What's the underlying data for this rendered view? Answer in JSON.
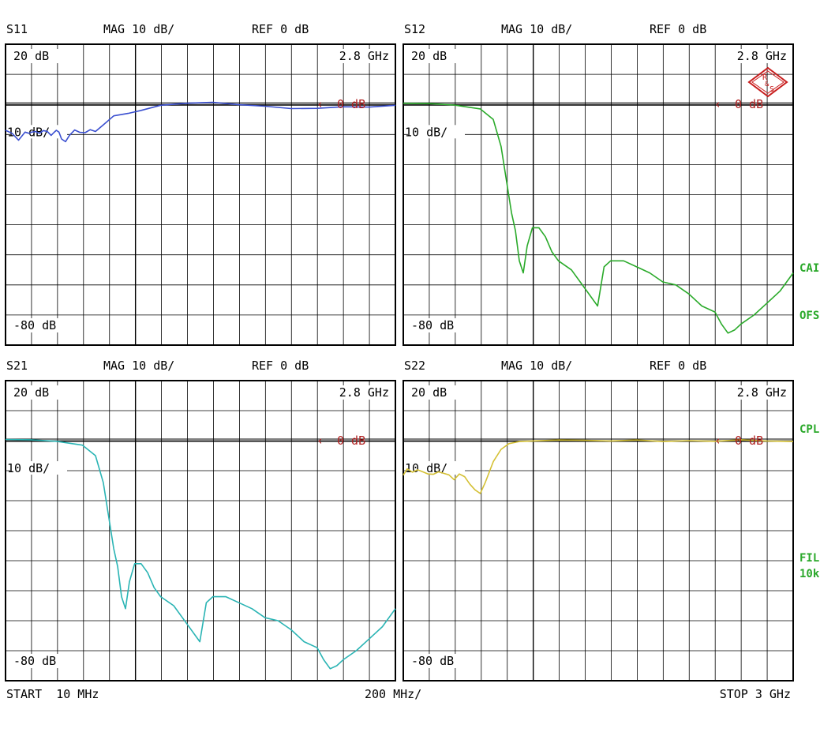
{
  "colors": {
    "frame": "#000000",
    "grid": "#000000",
    "ref_marker": "#b02020",
    "side_labels": "#2aa82a",
    "logo": "#c81e1e"
  },
  "logo": {
    "name": "rohde-schwarz-logo",
    "text": "R&S"
  },
  "sweep": {
    "start_label": "START  10 MHz",
    "span_label": "200 MHz/",
    "stop_label": "STOP 3 GHz"
  },
  "side_labels": [
    "CAI",
    "OFS",
    "CPL",
    "FIL",
    "10k"
  ],
  "chart_data": [
    {
      "type": "line",
      "title": "S11",
      "header_mag": "MAG 10 dB/",
      "header_ref": "REF 0 dB",
      "top_label": "20 dB",
      "corner_label": "2.8 GHz",
      "ref_label": "0 dB",
      "scale_label": "10 dB/",
      "bottom_label": "-80 dB",
      "series": [
        {
          "color": "#3a4fd0",
          "x": [
            10,
            60,
            110,
            160,
            190,
            210,
            240,
            270,
            300,
            330,
            360,
            380,
            400,
            420,
            440,
            470,
            500,
            540,
            580,
            620,
            660,
            700,
            760,
            840,
            950,
            1050,
            1200,
            1400,
            1600,
            1800,
            2000,
            2200,
            2400,
            2600,
            2800,
            3000
          ],
          "values": [
            -8.6,
            -9.6,
            -11.9,
            -9.2,
            -9.6,
            -9.2,
            -9.0,
            -9.6,
            -8.7,
            -9.0,
            -10.3,
            -9.4,
            -8.6,
            -9.2,
            -11.5,
            -12.4,
            -10.3,
            -8.5,
            -9.3,
            -9.4,
            -8.4,
            -9.0,
            -6.8,
            -3.8,
            -3.0,
            -2.0,
            -0.3,
            0.4,
            0.7,
            -0.1,
            -0.6,
            -1.4,
            -1.3,
            -0.8,
            -0.9,
            -0.3
          ]
        }
      ]
    },
    {
      "type": "line",
      "title": "S12",
      "header_mag": "MAG 10 dB/",
      "header_ref": "REF 0 dB",
      "top_label": "20 dB",
      "corner_label": "2.8 GHz",
      "ref_label": "0 dB",
      "scale_label": "10 dB/",
      "bottom_label": "-80 dB",
      "series": [
        {
          "color": "#2aaa2a",
          "x": [
            10,
            200,
            400,
            600,
            700,
            760,
            800,
            840,
            870,
            900,
            930,
            960,
            1000,
            1050,
            1100,
            1150,
            1200,
            1300,
            1400,
            1500,
            1550,
            1600,
            1700,
            1800,
            1900,
            2000,
            2100,
            2200,
            2300,
            2400,
            2450,
            2500,
            2550,
            2600,
            2700,
            2800,
            2900,
            3000
          ],
          "values": [
            0.4,
            0.3,
            -0.2,
            -1.5,
            -5.0,
            -14.0,
            -25.0,
            -36.0,
            -42.0,
            -52.0,
            -56.0,
            -47.0,
            -41.0,
            -41.0,
            -44.0,
            -49.0,
            -52.0,
            -55.0,
            -61.0,
            -67.0,
            -54.0,
            -52.0,
            -52.0,
            -54.0,
            -56.0,
            -59.0,
            -60.0,
            -63.0,
            -67.0,
            -69.0,
            -73.0,
            -76.0,
            -75.0,
            -73.0,
            -70.0,
            -66.0,
            -62.0,
            -56.0
          ]
        }
      ]
    },
    {
      "type": "line",
      "title": "S21",
      "header_mag": "MAG 10 dB/",
      "header_ref": "REF 0 dB",
      "top_label": "20 dB",
      "corner_label": "2.8 GHz",
      "ref_label": "0 dB",
      "scale_label": "10 dB/",
      "bottom_label": "-80 dB",
      "series": [
        {
          "color": "#2ab4b4",
          "x": [
            10,
            200,
            400,
            600,
            700,
            760,
            800,
            840,
            870,
            900,
            930,
            960,
            1000,
            1050,
            1100,
            1150,
            1200,
            1300,
            1400,
            1500,
            1550,
            1600,
            1700,
            1800,
            1900,
            2000,
            2100,
            2200,
            2300,
            2400,
            2450,
            2500,
            2550,
            2600,
            2700,
            2800,
            2900,
            3000
          ],
          "values": [
            0.4,
            0.3,
            -0.2,
            -1.5,
            -5.0,
            -14.0,
            -25.0,
            -36.0,
            -42.0,
            -52.0,
            -56.0,
            -47.0,
            -41.0,
            -41.0,
            -44.0,
            -49.0,
            -52.0,
            -55.0,
            -61.0,
            -67.0,
            -54.0,
            -52.0,
            -52.0,
            -54.0,
            -56.0,
            -59.0,
            -60.0,
            -63.0,
            -67.0,
            -69.0,
            -73.0,
            -76.0,
            -75.0,
            -73.0,
            -70.0,
            -66.0,
            -62.0,
            -56.0
          ]
        }
      ]
    },
    {
      "type": "line",
      "title": "S22",
      "header_mag": "MAG 10 dB/",
      "header_ref": "REF 0 dB",
      "top_label": "20 dB",
      "corner_label": "2.8 GHz",
      "ref_label": "0 dB",
      "scale_label": "10 dB/",
      "bottom_label": "-80 dB",
      "series": [
        {
          "color": "#d4c034",
          "x": [
            10,
            40,
            80,
            120,
            160,
            200,
            240,
            280,
            320,
            360,
            400,
            440,
            480,
            520,
            560,
            600,
            640,
            700,
            760,
            820,
            900,
            1000,
            1200,
            1400,
            1600,
            1800,
            2000,
            2200,
            2400,
            2600,
            2800,
            3000
          ],
          "values": [
            -11.5,
            -9.4,
            -10.5,
            -9.7,
            -10.4,
            -11.1,
            -11.2,
            -10.4,
            -10.9,
            -11.4,
            -13.0,
            -11.1,
            -12.0,
            -14.5,
            -16.4,
            -17.6,
            -13.8,
            -7.0,
            -2.9,
            -1.0,
            -0.3,
            -0.1,
            0.2,
            0.1,
            -0.1,
            0.2,
            -0.3,
            0.0,
            -0.2,
            0.3,
            -0.1,
            -0.3
          ]
        }
      ]
    }
  ]
}
